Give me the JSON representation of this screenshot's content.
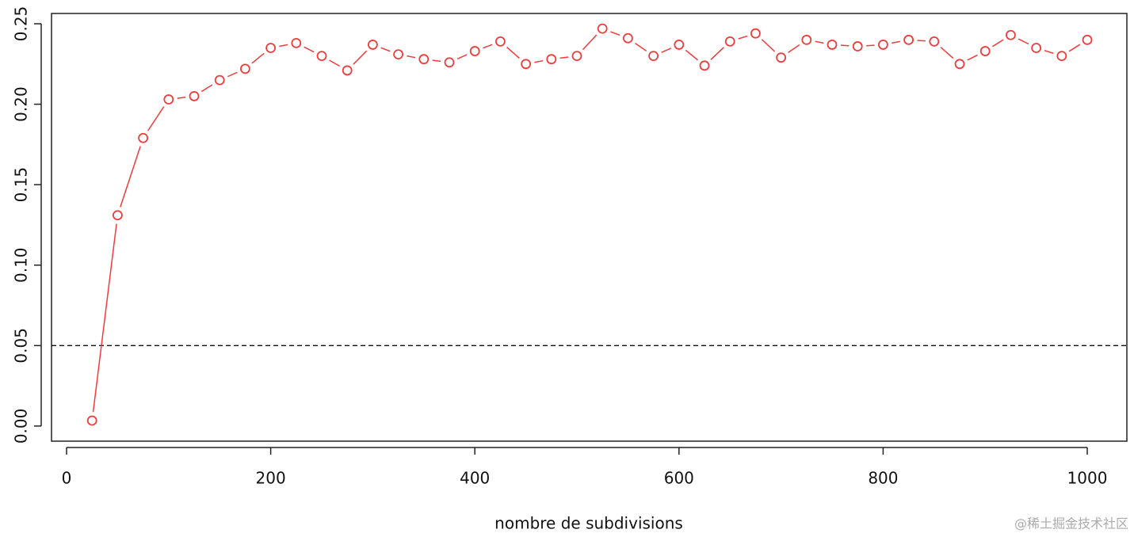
{
  "chart_data": {
    "type": "line",
    "x_label": "nombre de subdivisions",
    "watermark": "@稀土掘金技术社区",
    "x": [
      25,
      50,
      75,
      100,
      125,
      150,
      175,
      200,
      225,
      250,
      275,
      300,
      325,
      350,
      375,
      400,
      425,
      450,
      475,
      500,
      525,
      550,
      575,
      600,
      625,
      650,
      675,
      700,
      725,
      750,
      775,
      800,
      825,
      850,
      875,
      900,
      925,
      950,
      975,
      1000
    ],
    "series": [
      {
        "color": "#f03c3c",
        "values": [
          0.0034,
          0.131,
          0.179,
          0.203,
          0.205,
          0.215,
          0.222,
          0.235,
          0.238,
          0.23,
          0.221,
          0.237,
          0.231,
          0.228,
          0.226,
          0.233,
          0.239,
          0.225,
          0.228,
          0.23,
          0.247,
          0.241,
          0.23,
          0.237,
          0.224,
          0.239,
          0.244,
          0.229,
          0.24,
          0.237,
          0.236,
          0.237,
          0.24,
          0.239,
          0.225,
          0.233,
          0.243,
          0.235,
          0.23,
          0.24
        ]
      }
    ],
    "reference_line": 0.05,
    "xlim": [
      -14.75,
      1038.8
    ],
    "ylim": [
      -0.0094,
      0.2564
    ],
    "xticks": [
      0,
      200,
      400,
      600,
      800,
      1000
    ],
    "yticks": [
      {
        "value": 0,
        "label": "0.00"
      },
      0.05,
      {
        "value": 0.1,
        "label": "0.10"
      },
      0.15,
      {
        "value": 0.2,
        "label": "0.20"
      },
      0.25
    ]
  }
}
